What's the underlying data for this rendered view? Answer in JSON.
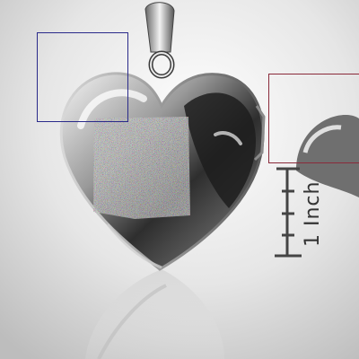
{
  "image": {
    "subject": "heart-locket-pendant",
    "background_color": "#eaeaea"
  },
  "ruler": {
    "label": "1 Inch"
  },
  "overlays": {
    "blue_box_color": "#2a2a8a",
    "red_box_color": "#8a2a3a"
  }
}
